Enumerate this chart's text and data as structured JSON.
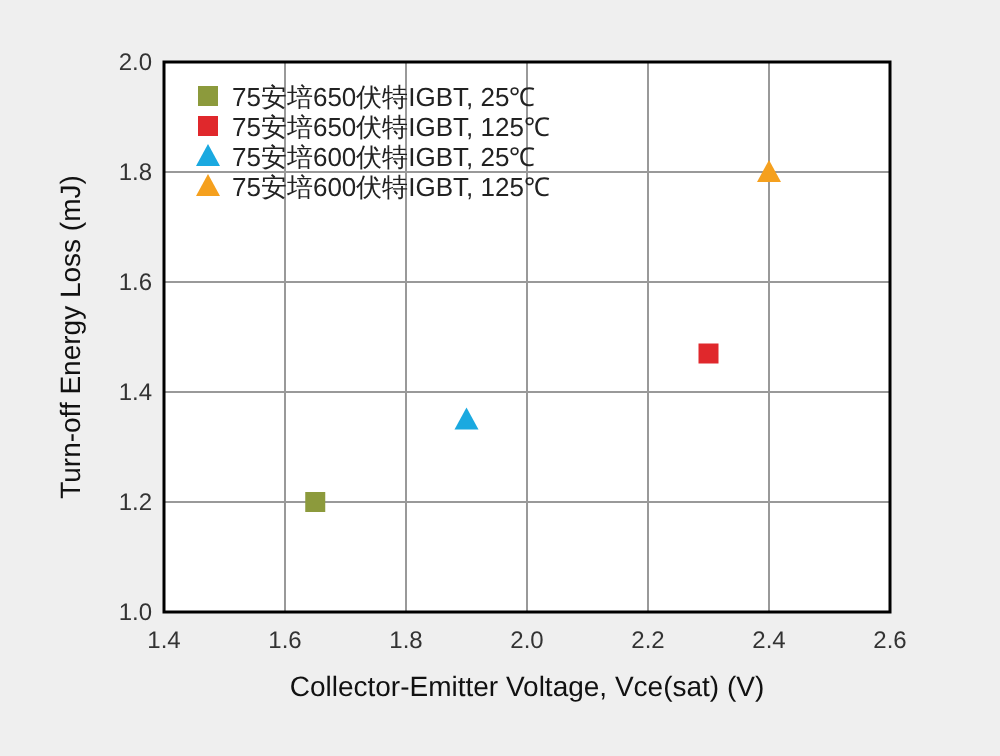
{
  "chart_data": {
    "type": "scatter",
    "xlabel": "Collector-Emitter Voltage, Vce(sat) (V)",
    "ylabel": "Turn-off Energy Loss (mJ)",
    "xlim": [
      1.4,
      2.6
    ],
    "xticks": [
      1.4,
      1.6,
      1.8,
      {
        "value": 2,
        "label": "2.0"
      },
      2.2,
      2.4,
      2.6
    ],
    "ylim": [
      1.0,
      2.0
    ],
    "yticks": [
      {
        "value": 1,
        "label": "1.0"
      },
      1.2,
      1.4,
      1.6,
      1.8,
      {
        "value": 2,
        "label": "2.0"
      }
    ],
    "grid": true,
    "legend": "top left",
    "series": [
      {
        "name": "75安培650伏特IGBT, 25℃",
        "color": "#8c9a3c",
        "marker": "square",
        "x": [
          1.65
        ],
        "values": [
          1.2
        ]
      },
      {
        "name": "75安培650伏特IGBT, 125℃",
        "color": "#e0282c",
        "marker": "square",
        "x": [
          2.3
        ],
        "values": [
          1.47
        ]
      },
      {
        "name": "75安培600伏特IGBT, 25℃",
        "color": "#1aa9e0",
        "marker": "triangle",
        "x": [
          1.9
        ],
        "values": [
          1.35
        ]
      },
      {
        "name": "75安培600伏特IGBT, 125℃",
        "color": "#f5a01e",
        "marker": "triangle",
        "x": [
          2.4
        ],
        "values": [
          1.8
        ]
      }
    ]
  }
}
